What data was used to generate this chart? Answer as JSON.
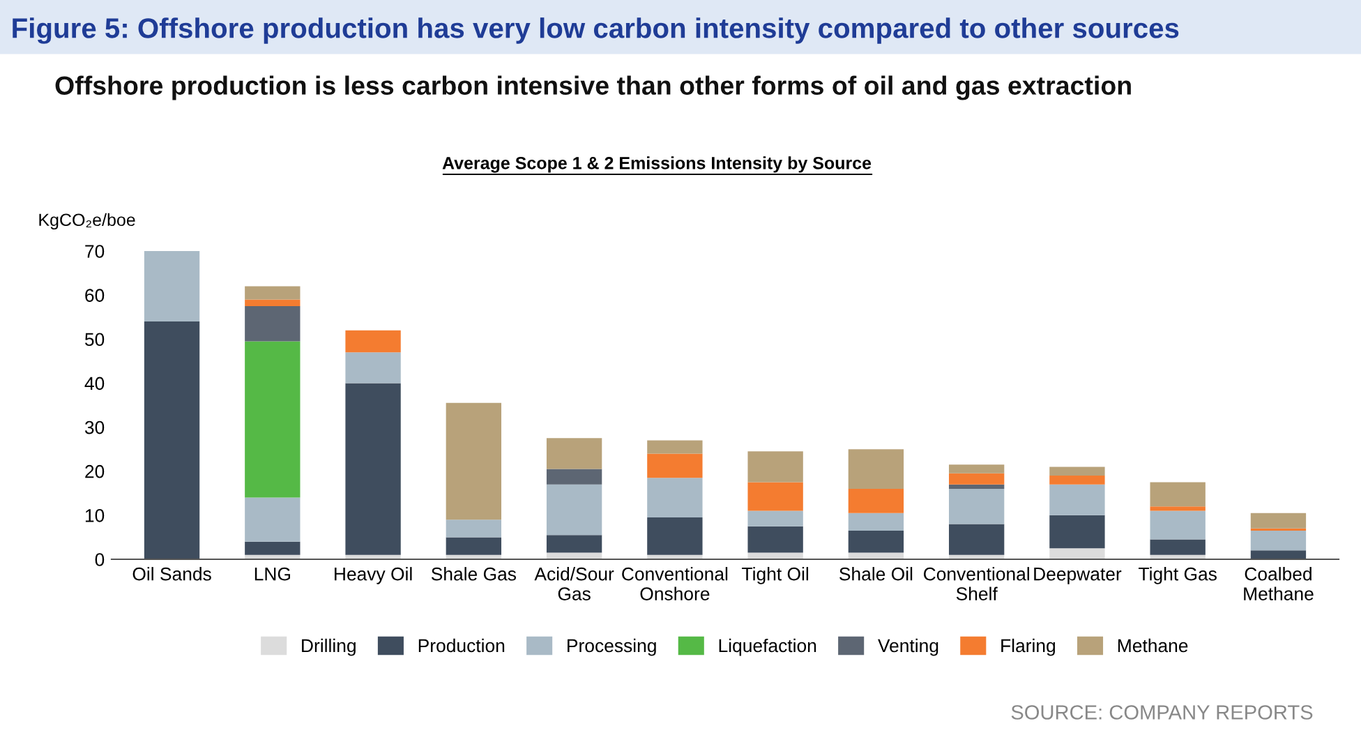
{
  "chart_data": {
    "type": "bar",
    "stacked": true,
    "title": "Figure 5: Offshore production has very low carbon intensity compared to other sources",
    "subtitle": "Offshore production is less carbon intensive than other forms of oil and gas extraction",
    "ylabel": "KgCO₂e/boe",
    "annotations": [
      "Average Scope 1 & 2 Emissions Intensity by Source",
      "SOURCE: COMPANY REPORTS"
    ],
    "categories": [
      "Oil Sands",
      "LNG",
      "Heavy Oil",
      "Shale Gas",
      "Acid/Sour\nGas",
      "Conventional\nOnshore",
      "Tight Oil",
      "Shale Oil",
      "Conventional\nShelf",
      "Deepwater",
      "Tight Gas",
      "Coalbed\nMethane"
    ],
    "series": [
      {
        "name": "Drilling",
        "color": "#dcdcdc",
        "values": [
          null,
          1,
          1,
          1,
          1.5,
          1,
          1.5,
          1.5,
          1,
          2.5,
          1,
          null
        ]
      },
      {
        "name": "Production",
        "color": "#3f4d5e",
        "values": [
          54,
          3,
          39,
          4,
          4,
          8.5,
          6,
          5,
          7,
          7.5,
          3.5,
          2
        ]
      },
      {
        "name": "Processing",
        "color": "#a9bac6",
        "values": [
          16,
          10,
          7,
          4,
          11.5,
          9,
          3.5,
          4,
          8,
          7,
          6.5,
          4.5
        ]
      },
      {
        "name": "Liquefaction",
        "color": "#55b946",
        "values": [
          null,
          35.5,
          null,
          null,
          null,
          null,
          null,
          null,
          null,
          null,
          null,
          null
        ]
      },
      {
        "name": "Venting",
        "color": "#5d6673",
        "values": [
          null,
          8,
          null,
          null,
          3.5,
          null,
          null,
          null,
          1,
          null,
          null,
          null
        ]
      },
      {
        "name": "Flaring",
        "color": "#f47c30",
        "values": [
          null,
          1.5,
          5,
          null,
          null,
          5.5,
          6.5,
          5.5,
          2.5,
          2,
          1,
          0.5
        ]
      },
      {
        "name": "Methane",
        "color": "#b8a27a",
        "values": [
          null,
          3,
          null,
          26.5,
          7,
          3,
          7,
          9,
          2,
          2,
          5.5,
          3.5
        ]
      }
    ],
    "ylim": [
      0,
      70
    ],
    "yticks": [
      0,
      10,
      20,
      30,
      40,
      50,
      60,
      70
    ],
    "legend": "bottom",
    "grid": false
  }
}
